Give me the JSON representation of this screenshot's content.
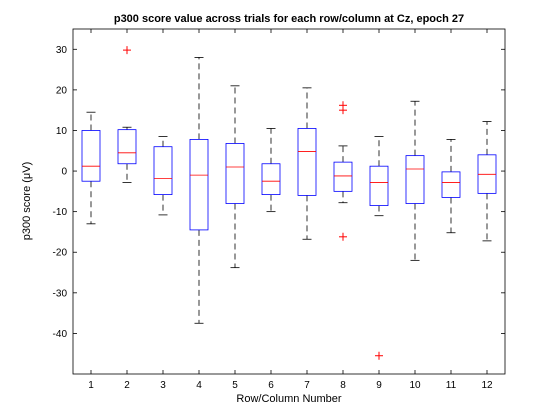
{
  "chart_data": {
    "type": "boxplot",
    "title": "p300 score value across trials for each row/column at Cz, epoch 27",
    "xlabel": "Row/Column Number",
    "ylabel": "p300 score (μV)",
    "xlim": [
      0.5,
      12.5
    ],
    "ylim": [
      -50,
      35
    ],
    "xticks": [
      1,
      2,
      3,
      4,
      5,
      6,
      7,
      8,
      9,
      10,
      11,
      12
    ],
    "yticks": [
      -40,
      -30,
      -20,
      -10,
      0,
      10,
      20,
      30
    ],
    "grid": false,
    "legend": "none",
    "colors": {
      "box": "#0000ff",
      "median": "#ff0000",
      "whisker": "#000000",
      "outlier": "#ff0000",
      "axes": "#000000",
      "background": "#ffffff"
    },
    "boxes": [
      {
        "x": 1,
        "q1": -2.5,
        "median": 1.2,
        "q3": 10.0,
        "lower_whisker": -13.0,
        "upper_whisker": 14.5,
        "outliers": []
      },
      {
        "x": 2,
        "q1": 1.8,
        "median": 4.5,
        "q3": 10.2,
        "lower_whisker": -2.8,
        "upper_whisker": 10.8,
        "outliers": [
          29.8
        ]
      },
      {
        "x": 3,
        "q1": -5.8,
        "median": -1.8,
        "q3": 6.0,
        "lower_whisker": -10.8,
        "upper_whisker": 8.5,
        "outliers": []
      },
      {
        "x": 4,
        "q1": -14.5,
        "median": -1.0,
        "q3": 7.8,
        "lower_whisker": -37.5,
        "upper_whisker": 28.0,
        "outliers": []
      },
      {
        "x": 5,
        "q1": -8.0,
        "median": 1.0,
        "q3": 6.8,
        "lower_whisker": -23.8,
        "upper_whisker": 21.0,
        "outliers": []
      },
      {
        "x": 6,
        "q1": -5.8,
        "median": -2.5,
        "q3": 1.8,
        "lower_whisker": -10.0,
        "upper_whisker": 10.5,
        "outliers": []
      },
      {
        "x": 7,
        "q1": -6.0,
        "median": 4.8,
        "q3": 10.5,
        "lower_whisker": -16.8,
        "upper_whisker": 20.5,
        "outliers": []
      },
      {
        "x": 8,
        "q1": -5.0,
        "median": -1.2,
        "q3": 2.2,
        "lower_whisker": -7.8,
        "upper_whisker": 6.2,
        "outliers": [
          16.2,
          15.0,
          -16.2
        ]
      },
      {
        "x": 9,
        "q1": -8.5,
        "median": -2.8,
        "q3": 1.2,
        "lower_whisker": -11.0,
        "upper_whisker": 8.5,
        "outliers": [
          -45.5
        ]
      },
      {
        "x": 10,
        "q1": -8.0,
        "median": 0.5,
        "q3": 3.8,
        "lower_whisker": -22.0,
        "upper_whisker": 17.2,
        "outliers": []
      },
      {
        "x": 11,
        "q1": -6.5,
        "median": -2.8,
        "q3": -0.2,
        "lower_whisker": -15.2,
        "upper_whisker": 7.8,
        "outliers": []
      },
      {
        "x": 12,
        "q1": -5.5,
        "median": -0.8,
        "q3": 4.0,
        "lower_whisker": -17.2,
        "upper_whisker": 12.2,
        "outliers": []
      }
    ]
  }
}
